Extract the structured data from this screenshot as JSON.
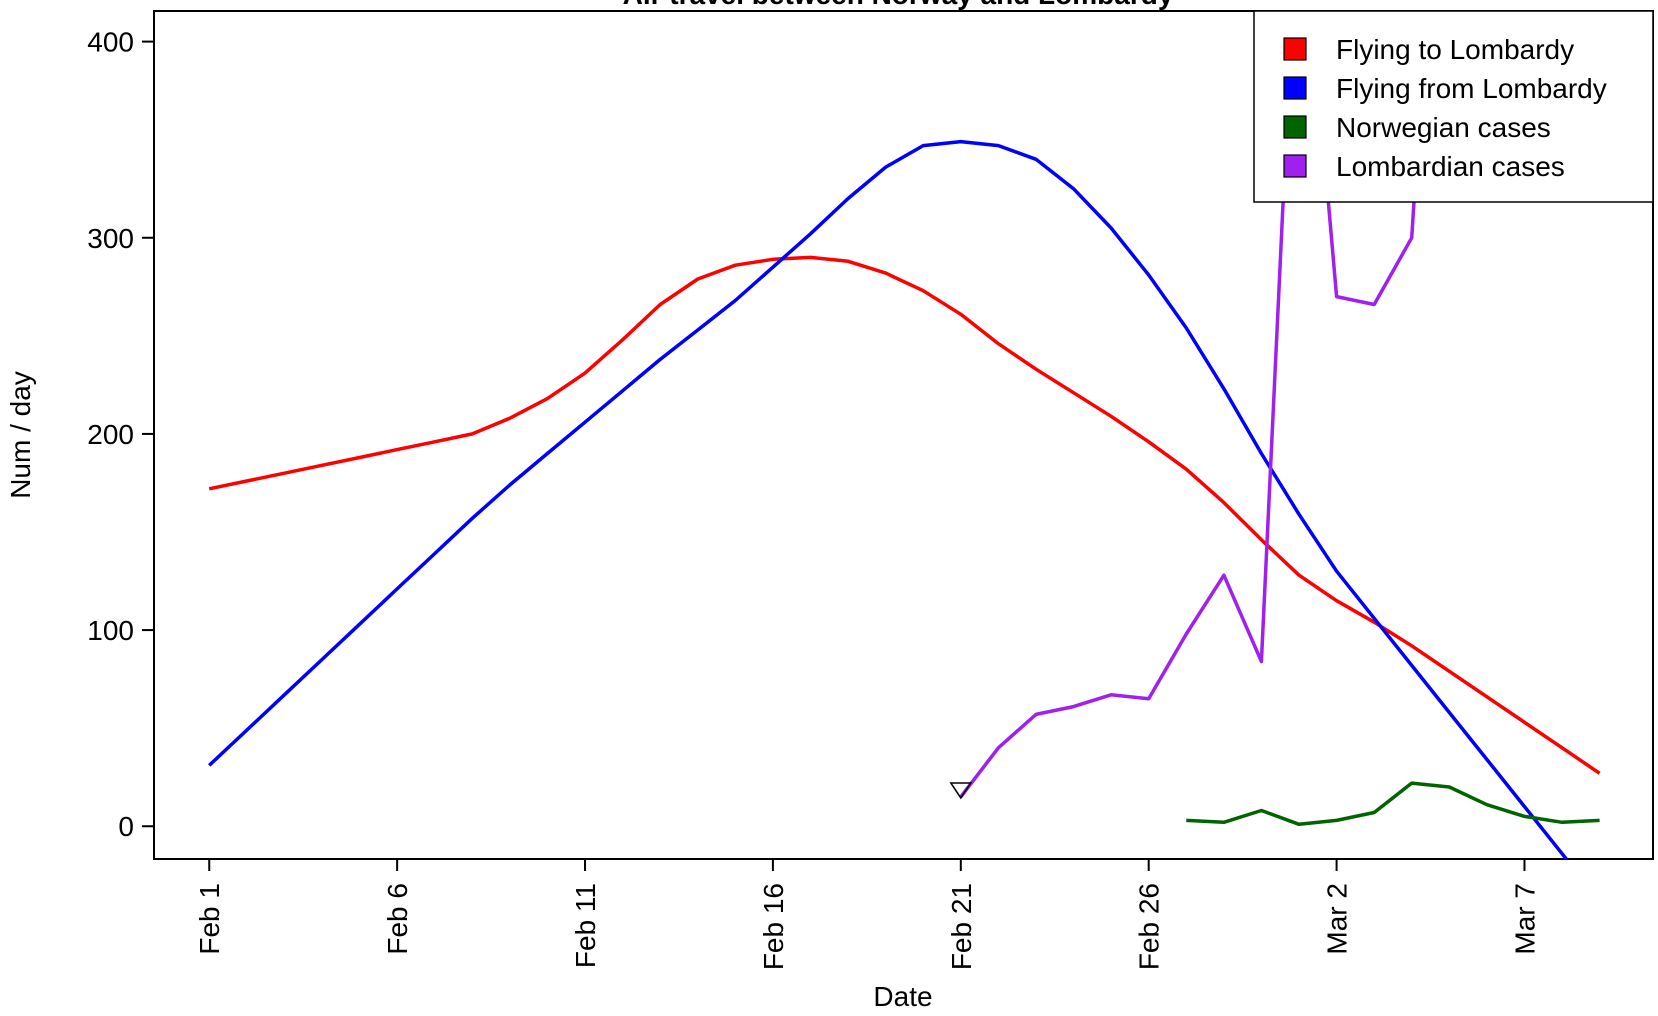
{
  "chart_data": {
    "type": "line",
    "title": "Air travel between Norway and Lombardy",
    "xlabel": "Date",
    "ylabel": "Num / day",
    "categories": [
      "Feb 1",
      null,
      null,
      null,
      null,
      "Feb 6",
      null,
      null,
      null,
      null,
      "Feb 11",
      null,
      null,
      null,
      null,
      "Feb 16",
      null,
      null,
      null,
      null,
      "Feb 21",
      null,
      null,
      null,
      null,
      "Feb 26",
      null,
      null,
      null,
      null,
      "Mar 2",
      null,
      null,
      null,
      null,
      "Mar 7",
      null,
      null
    ],
    "xlim": [
      -1.47,
      38.42
    ],
    "ylim": [
      -16.7,
      415.6
    ],
    "yticks": [
      0,
      100,
      200,
      300,
      400
    ],
    "series": [
      {
        "name": "Flying to Lombardy",
        "color": "#ff0000",
        "values": [
          172,
          176,
          180,
          184,
          188,
          192,
          196,
          200,
          208,
          218,
          231,
          248,
          266,
          279,
          286,
          289,
          290,
          288,
          282,
          273,
          261,
          246,
          233,
          221,
          209,
          196,
          182,
          165,
          146,
          128,
          115,
          104,
          92,
          79,
          66,
          53,
          40,
          27
        ]
      },
      {
        "name": "Flying from Lombardy",
        "color": "#0000ff",
        "values": [
          31,
          49,
          67,
          85,
          103,
          121,
          139,
          157,
          174,
          190,
          206,
          222,
          238,
          253,
          268,
          285,
          302,
          320,
          336,
          347,
          349,
          347,
          340,
          325,
          305,
          281,
          254,
          223,
          190,
          159,
          130,
          106,
          82,
          58,
          34,
          10,
          -14,
          -38
        ]
      },
      {
        "name": "Norwegian cases",
        "color": "#006400",
        "values": [
          null,
          null,
          null,
          null,
          null,
          null,
          null,
          null,
          null,
          null,
          null,
          null,
          null,
          null,
          null,
          null,
          null,
          null,
          null,
          null,
          null,
          null,
          null,
          null,
          null,
          null,
          3,
          2,
          8,
          1,
          3,
          7,
          22,
          20,
          11,
          5,
          2,
          3
        ]
      },
      {
        "name": "Lombardian cases",
        "color": "#a020f0",
        "values": [
          null,
          null,
          null,
          null,
          null,
          null,
          null,
          null,
          null,
          null,
          null,
          null,
          null,
          null,
          null,
          null,
          null,
          null,
          null,
          null,
          15,
          40,
          57,
          61,
          67,
          65,
          98,
          128,
          84,
          490,
          270,
          266,
          300,
          600,
          null,
          null,
          null,
          null
        ]
      }
    ],
    "points": [
      {
        "x": "Feb 21",
        "y": 19,
        "shape": "triangle-down"
      }
    ],
    "legend": "top-right"
  }
}
